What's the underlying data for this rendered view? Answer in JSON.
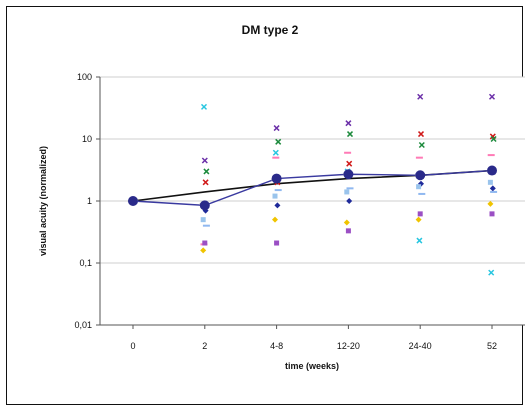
{
  "chart_data": {
    "type": "scatter",
    "title": "DM type 2",
    "xlabel": "time (weeks)",
    "ylabel": "visual acuity (normalized)",
    "y_scale": "log",
    "ylim": [
      0.01,
      100
    ],
    "y_ticks": [
      "0,01",
      "0,1",
      "1",
      "10",
      "100"
    ],
    "y_tick_values": [
      0.01,
      0.1,
      1,
      10,
      100
    ],
    "categories": [
      "0",
      "2",
      "4-8",
      "12-20",
      "24-40",
      "52"
    ],
    "grid": "horizontal",
    "legend": "none",
    "series": [
      {
        "color": "#b0b0b0",
        "marker": "dash",
        "values": [
          1,
          0.9,
          2.2,
          2.7,
          2.6,
          3.0
        ]
      },
      {
        "color": "#27c6e0",
        "marker": "x",
        "values": [
          1,
          33,
          6.0,
          3.0,
          0.23,
          0.07
        ]
      },
      {
        "color": "#6b2fa8",
        "marker": "x",
        "values": [
          1,
          4.5,
          15.0,
          18.0,
          48.0,
          48.0
        ]
      },
      {
        "color": "#d01a1a",
        "marker": "x",
        "values": [
          1,
          2.0,
          2.0,
          4.0,
          12.0,
          11.0
        ]
      },
      {
        "color": "#1c8a3c",
        "marker": "x",
        "values": [
          1,
          3.0,
          9.0,
          12.0,
          8.0,
          10.0
        ]
      },
      {
        "color": "#f0c400",
        "marker": "diamond",
        "values": [
          1,
          0.16,
          0.5,
          0.45,
          0.5,
          0.9
        ]
      },
      {
        "color": "#ff7ab6",
        "marker": "dash",
        "values": [
          1,
          0.2,
          5.0,
          6.0,
          5.0,
          5.5
        ]
      },
      {
        "color": "#9b4fc4",
        "marker": "square",
        "values": [
          1,
          0.21,
          0.21,
          0.33,
          0.62,
          0.62
        ]
      },
      {
        "color": "#1f2a9a",
        "marker": "diamond",
        "values": [
          1,
          0.7,
          0.85,
          1.0,
          1.9,
          1.6
        ]
      },
      {
        "color": "#8fb8f0",
        "marker": "dash",
        "values": [
          1,
          0.4,
          1.5,
          1.6,
          1.3,
          1.4
        ]
      },
      {
        "color": "#9ac4ec",
        "marker": "square",
        "values": [
          1,
          0.5,
          1.2,
          1.4,
          1.7,
          2.0
        ]
      },
      {
        "color": "#2a2a8a",
        "marker": "circle",
        "values": [
          1,
          0.85,
          2.3,
          2.7,
          2.6,
          3.1
        ]
      },
      {
        "color": "#000000",
        "marker": "none",
        "values": [
          1,
          1.4,
          1.9,
          2.3,
          2.6,
          3.1
        ]
      }
    ]
  }
}
